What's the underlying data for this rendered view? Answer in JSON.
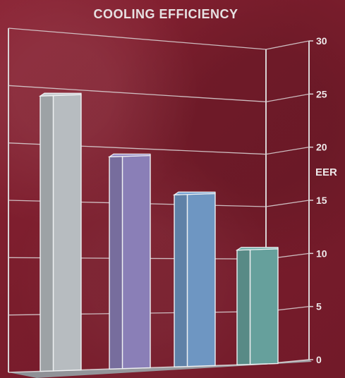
{
  "chart_data": {
    "type": "bar",
    "title": "COOLING EFFICIENCY",
    "ylabel": "EER",
    "categories": [
      "",
      "",
      "",
      ""
    ],
    "values": [
      24,
      18.5,
      15,
      10
    ],
    "ylim": [
      0,
      30
    ],
    "yticks": [
      0,
      5,
      10,
      15,
      20,
      25,
      30
    ],
    "grid": true,
    "legend": "none",
    "colors": [
      "#b7bcc0",
      "#8a7fb7",
      "#6e96c2",
      "#66a09c"
    ]
  },
  "theme": {
    "background": "#7b1d2c",
    "grid": "#d9d2d4",
    "text": "#ece7e8"
  }
}
